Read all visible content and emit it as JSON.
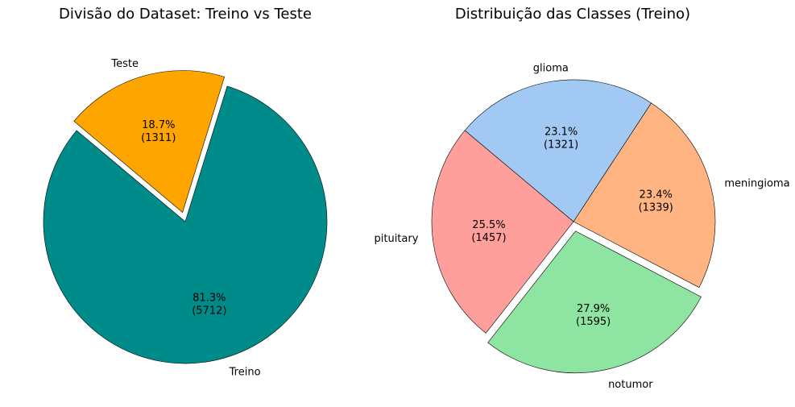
{
  "chart_data": [
    {
      "type": "pie",
      "title": "Divisão do Dataset: Treino vs Teste",
      "categories": [
        "Treino",
        "Teste"
      ],
      "values": [
        5712,
        1311
      ],
      "percent_labels": [
        "81.3%",
        "18.7%"
      ],
      "count_labels": [
        "(5712)",
        "(1311)"
      ],
      "colors": [
        "#008b8b",
        "#ffa500"
      ],
      "exploded": [
        "Teste"
      ],
      "start_angle_deg": 140,
      "legend": "none"
    },
    {
      "type": "pie",
      "title": "Distribuição das Classes (Treino)",
      "categories": [
        "pituitary",
        "notumor",
        "meningioma",
        "glioma"
      ],
      "values": [
        1457,
        1595,
        1339,
        1321
      ],
      "percent_labels": [
        "25.5%",
        "27.9%",
        "23.4%",
        "23.1%"
      ],
      "count_labels": [
        "(1457)",
        "(1595)",
        "(1339)",
        "(1321)"
      ],
      "colors": [
        "#ff9f9b",
        "#8de5a1",
        "#ffb482",
        "#a1c9f4"
      ],
      "exploded": [
        "notumor"
      ],
      "start_angle_deg": 140,
      "legend": "none"
    }
  ]
}
